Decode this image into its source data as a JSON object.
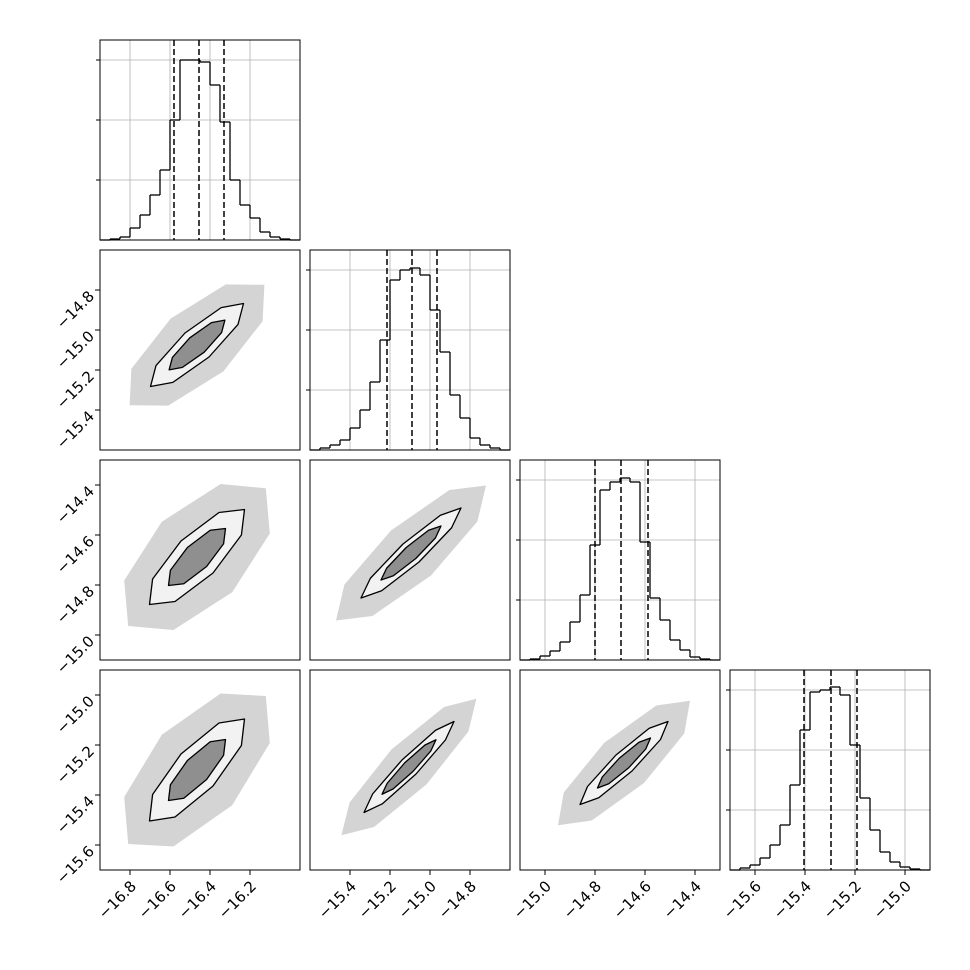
{
  "chart_data": {
    "type": "corner",
    "hist_ylim": [
      0,
      200
    ],
    "hist_yticks": [
      60,
      120,
      180
    ],
    "grid": true,
    "hist_color": "#000000",
    "level_fills": [
      "#d4d4d4",
      "#f2f2f2",
      "#8f8f8f"
    ],
    "params": [
      {
        "lim": [
          -16.95,
          -15.95
        ],
        "ticks": [
          {
            "value": -16.8,
            "label": "−16.8"
          },
          {
            "value": -16.6,
            "label": "−16.6"
          },
          {
            "value": -16.4,
            "label": "−16.4"
          },
          {
            "value": -16.2,
            "label": "−16.2"
          }
        ],
        "quantiles": [
          -16.58,
          -16.455,
          -16.33
        ],
        "bins": [
          -16.95,
          -16.9,
          -16.85,
          -16.8,
          -16.75,
          -16.7,
          -16.65,
          -16.6,
          -16.55,
          -16.5,
          -16.45,
          -16.4,
          -16.35,
          -16.3,
          -16.25,
          -16.2,
          -16.15,
          -16.1,
          -16.05,
          -16.0,
          -15.95
        ],
        "values": [
          0,
          1,
          3,
          12,
          25,
          45,
          70,
          120,
          180,
          180,
          178,
          155,
          118,
          60,
          35,
          22,
          8,
          3,
          1,
          0
        ]
      },
      {
        "lim": [
          -15.6,
          -14.6
        ],
        "ticks": [
          {
            "value": -15.4,
            "label": "−15.4"
          },
          {
            "value": -15.2,
            "label": "−15.2"
          },
          {
            "value": -15.0,
            "label": "−15.0"
          },
          {
            "value": -14.8,
            "label": "−14.8"
          }
        ],
        "quantiles": [
          -15.215,
          -15.09,
          -14.965
        ],
        "bins": [
          -15.6,
          -15.55,
          -15.5,
          -15.45,
          -15.4,
          -15.35,
          -15.3,
          -15.25,
          -15.2,
          -15.15,
          -15.1,
          -15.05,
          -15.0,
          -14.95,
          -14.9,
          -14.85,
          -14.8,
          -14.75,
          -14.7,
          -14.65,
          -14.6
        ],
        "values": [
          0,
          2,
          5,
          10,
          22,
          40,
          68,
          110,
          170,
          180,
          182,
          175,
          140,
          98,
          55,
          32,
          12,
          5,
          2,
          0
        ]
      },
      {
        "lim": [
          -15.1,
          -14.3
        ],
        "ticks": [
          {
            "value": -15.0,
            "label": "−15.0"
          },
          {
            "value": -14.8,
            "label": "−14.8"
          },
          {
            "value": -14.6,
            "label": "−14.6"
          },
          {
            "value": -14.4,
            "label": "−14.4"
          }
        ],
        "quantiles": [
          -14.8,
          -14.696,
          -14.588
        ],
        "bins": [
          -15.1,
          -15.06,
          -15.02,
          -14.98,
          -14.94,
          -14.9,
          -14.86,
          -14.82,
          -14.78,
          -14.74,
          -14.7,
          -14.66,
          -14.62,
          -14.58,
          -14.54,
          -14.5,
          -14.46,
          -14.42,
          -14.38,
          -14.34,
          -14.3
        ],
        "values": [
          0,
          1,
          4,
          9,
          18,
          38,
          65,
          115,
          170,
          178,
          182,
          178,
          118,
          62,
          40,
          20,
          10,
          3,
          1,
          0
        ]
      },
      {
        "lim": [
          -15.7,
          -14.9
        ],
        "ticks": [
          {
            "value": -15.6,
            "label": "−15.6"
          },
          {
            "value": -15.4,
            "label": "−15.4"
          },
          {
            "value": -15.2,
            "label": "−15.2"
          },
          {
            "value": -15.0,
            "label": "−15.0"
          }
        ],
        "quantiles": [
          -15.404,
          -15.296,
          -15.192
        ],
        "bins": [
          -15.7,
          -15.66,
          -15.62,
          -15.58,
          -15.54,
          -15.5,
          -15.46,
          -15.42,
          -15.38,
          -15.34,
          -15.3,
          -15.26,
          -15.22,
          -15.18,
          -15.14,
          -15.1,
          -15.06,
          -15.02,
          -14.98,
          -14.94,
          -14.9
        ],
        "values": [
          0,
          2,
          5,
          12,
          25,
          45,
          85,
          140,
          178,
          180,
          183,
          175,
          125,
          72,
          40,
          18,
          8,
          3,
          1,
          0
        ]
      }
    ],
    "pairs": [
      [
        [
          {
            "x": [
              -16.128,
              -16.137,
              -16.333,
              -16.609,
              -16.802,
              -16.793,
              -16.597,
              -16.321
            ],
            "y": [
              -14.774,
              -14.956,
              -15.207,
              -15.378,
              -15.376,
              -15.194,
              -14.943,
              -14.772
            ]
          },
          {
            "x": [
              -16.2325,
              -16.26,
              -16.405,
              -16.586,
              -16.6975,
              -16.67,
              -16.525,
              -16.344
            ],
            "y": [
              -14.8675,
              -14.972,
              -15.135,
              -15.262,
              -15.2825,
              -15.178,
              -15.015,
              -14.888
            ]
          },
          {
            "x": [
              -16.3255,
              -16.342,
              -16.429,
              -16.538,
              -16.6045,
              -16.588,
              -16.501,
              -16.393
            ],
            "y": [
              -14.9505,
              -15.013,
              -15.111,
              -15.187,
              -15.1995,
              -15.137,
              -15.039,
              -14.963
            ]
          }
        ]
      ],
      [
        [
          {
            "x": [
              -16.121,
              -16.101,
              -16.289,
              -16.583,
              -16.809,
              -16.829,
              -16.641,
              -16.347
            ],
            "y": [
              -14.413,
              -14.594,
              -14.829,
              -14.98,
              -14.964,
              -14.782,
              -14.547,
              -14.396
            ]
          },
          {
            "x": [
              -16.2275,
              -16.243,
              -16.385,
              -16.575,
              -16.7025,
              -16.687,
              -16.545,
              -16.355
            ],
            "y": [
              -14.498,
              -14.6,
              -14.752,
              -14.866,
              -14.878,
              -14.776,
              -14.624,
              -14.51
            ]
          },
          {
            "x": [
              -16.3225,
              -16.332,
              -16.417,
              -16.531,
              -16.6075,
              -16.598,
              -16.513,
              -16.399
            ],
            "y": [
              -14.574,
              -14.635,
              -14.726,
              -14.795,
              -14.802,
              -14.741,
              -14.65,
              -14.581
            ]
          }
        ],
        [
          {
            "x": [
              -14.72,
              -14.763,
              -14.995,
              -15.288,
              -15.47,
              -15.428,
              -15.195,
              -14.903
            ],
            "y": [
              -14.402,
              -14.546,
              -14.762,
              -14.924,
              -14.942,
              -14.798,
              -14.582,
              -14.42
            ]
          },
          {
            "x": [
              -14.845,
              -14.892,
              -15.055,
              -15.242,
              -15.345,
              -15.298,
              -15.135,
              -14.948
            ],
            "y": [
              -14.492,
              -14.571,
              -14.708,
              -14.823,
              -14.852,
              -14.773,
              -14.636,
              -14.521
            ]
          },
          {
            "x": [
              -14.945,
              -14.973,
              -15.071,
              -15.183,
              -15.245,
              -15.217,
              -15.119,
              -15.007
            ],
            "y": [
              -14.564,
              -14.612,
              -14.694,
              -14.763,
              -14.78,
              -14.733,
              -14.65,
              -14.581
            ]
          }
        ]
      ],
      [
        [
          {
            "x": [
              -16.121,
              -16.101,
              -16.289,
              -16.583,
              -16.809,
              -16.829,
              -16.641,
              -16.347
            ],
            "y": [
              -15.004,
              -15.192,
              -15.441,
              -15.606,
              -15.596,
              -15.408,
              -15.159,
              -14.994
            ]
          },
          {
            "x": [
              -16.2275,
              -16.243,
              -16.385,
              -16.575,
              -16.7025,
              -16.687,
              -16.545,
              -16.355
            ],
            "y": [
              -15.096,
              -15.202,
              -15.364,
              -15.488,
              -15.504,
              -15.398,
              -15.236,
              -15.112
            ]
          },
          {
            "x": [
              -16.3225,
              -16.332,
              -16.417,
              -16.531,
              -16.6075,
              -16.598,
              -16.513,
              -16.399
            ],
            "y": [
              -15.178,
              -15.241,
              -15.338,
              -15.413,
              -15.422,
              -15.359,
              -15.262,
              -15.187
            ]
          }
        ],
        [
          {
            "x": [
              -14.768,
              -14.808,
              -15.018,
              -15.28,
              -15.443,
              -15.402,
              -15.193,
              -14.93
            ],
            "y": [
              -15.015,
              -15.146,
              -15.358,
              -15.528,
              -15.561,
              -15.43,
              -15.218,
              -15.048
            ]
          },
          {
            "x": [
              -14.88,
              -14.923,
              -15.07,
              -15.238,
              -15.33,
              -15.287,
              -15.14,
              -14.972
            ],
            "y": [
              -15.106,
              -15.18,
              -15.316,
              -15.435,
              -15.47,
              -15.396,
              -15.26,
              -15.141
            ]
          },
          {
            "x": [
              -14.97,
              -14.996,
              -15.084,
              -15.185,
              -15.24,
              -15.214,
              -15.126,
              -15.025
            ],
            "y": [
              -15.179,
              -15.224,
              -15.305,
              -15.376,
              -15.397,
              -15.353,
              -15.271,
              -15.2
            ]
          }
        ],
        [
          {
            "x": [
              -14.42,
              -14.443,
              -14.604,
              -14.813,
              -14.948,
              -14.925,
              -14.764,
              -14.555
            ],
            "y": [
              -15.023,
              -15.154,
              -15.352,
              -15.502,
              -15.521,
              -15.39,
              -15.192,
              -15.042
            ]
          },
          {
            "x": [
              -14.508,
              -14.538,
              -14.652,
              -14.785,
              -14.86,
              -14.83,
              -14.716,
              -14.583
            ],
            "y": [
              -15.106,
              -15.178,
              -15.304,
              -15.411,
              -15.438,
              -15.366,
              -15.24,
              -15.133
            ]
          },
          {
            "x": [
              -14.578,
              -14.597,
              -14.665,
              -14.745,
              -14.79,
              -14.771,
              -14.703,
              -14.624
            ],
            "y": [
              -15.172,
              -15.216,
              -15.291,
              -15.355,
              -15.372,
              -15.328,
              -15.253,
              -15.189
            ]
          }
        ]
      ]
    ]
  }
}
